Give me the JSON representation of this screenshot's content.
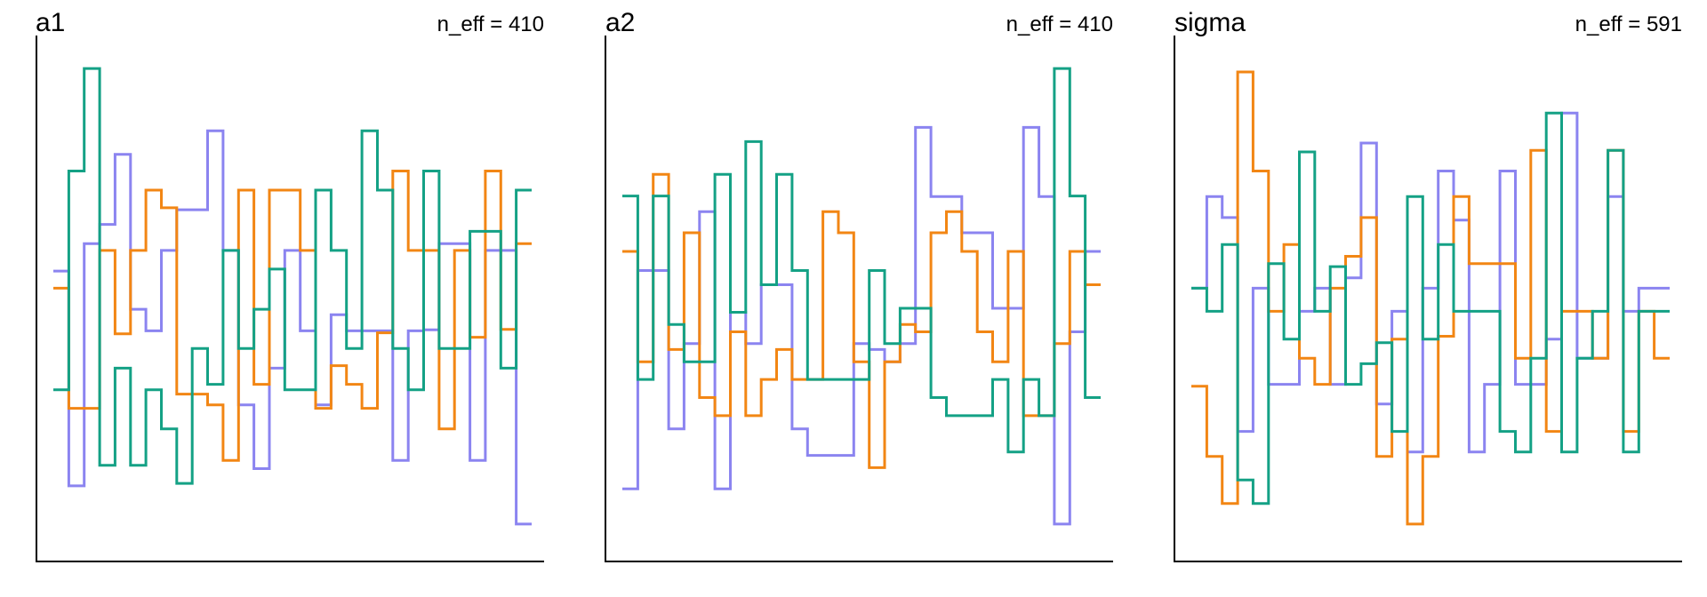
{
  "figure": "trank trace plot",
  "colors": {
    "chain1": "#8b84f0",
    "chain2": "#f28614",
    "chain3": "#14a185",
    "axis": "#000000"
  },
  "chart_data": [
    {
      "type": "line",
      "step": true,
      "title": "a1",
      "annotation": "n_eff = 410",
      "ylim": [
        0,
        1
      ],
      "n_bins": 31,
      "axes": [
        "left",
        "bottom"
      ],
      "grid": false,
      "series": [
        {
          "values": [
            0.556,
            0.118,
            0.612,
            0.651,
            0.794,
            0.478,
            0.434,
            0.598,
            0.681,
            0.681,
            0.842,
            0.598,
            0.283,
            0.153,
            0.358,
            0.598,
            0.434,
            0.283,
            0.467,
            0.434,
            0.434,
            0.434,
            0.17,
            0.434,
            0.436,
            0.612,
            0.612,
            0.17,
            0.598,
            0.598,
            0.04
          ]
        },
        {
          "values": [
            0.521,
            0.276,
            0.276,
            0.598,
            0.428,
            0.598,
            0.721,
            0.685,
            0.305,
            0.305,
            0.283,
            0.17,
            0.721,
            0.325,
            0.721,
            0.721,
            0.598,
            0.276,
            0.363,
            0.325,
            0.276,
            0.43,
            0.76,
            0.598,
            0.598,
            0.234,
            0.598,
            0.421,
            0.76,
            0.437,
            0.612
          ]
        },
        {
          "values": [
            0.314,
            0.76,
            0.969,
            0.16,
            0.358,
            0.16,
            0.314,
            0.234,
            0.123,
            0.398,
            0.325,
            0.598,
            0.398,
            0.478,
            0.56,
            0.314,
            0.314,
            0.721,
            0.598,
            0.398,
            0.842,
            0.721,
            0.398,
            0.314,
            0.76,
            0.398,
            0.398,
            0.637,
            0.637,
            0.358,
            0.721
          ]
        }
      ]
    },
    {
      "type": "line",
      "step": true,
      "title": "a2",
      "annotation": "n_eff = 410",
      "ylim": [
        0,
        1
      ],
      "n_bins": 31,
      "axes": [
        "left",
        "bottom"
      ],
      "grid": false,
      "series": [
        {
          "values": [
            0.112,
            0.557,
            0.557,
            0.234,
            0.408,
            0.677,
            0.112,
            0.472,
            0.408,
            0.528,
            0.528,
            0.234,
            0.18,
            0.18,
            0.18,
            0.408,
            0.396,
            0.371,
            0.408,
            0.849,
            0.708,
            0.708,
            0.634,
            0.634,
            0.48,
            0.48,
            0.849,
            0.708,
            0.04,
            0.432,
            0.596
          ]
        },
        {
          "values": [
            0.596,
            0.371,
            0.753,
            0.396,
            0.634,
            0.298,
            0.261,
            0.432,
            0.261,
            0.335,
            0.396,
            0.335,
            0.335,
            0.677,
            0.634,
            0.371,
            0.155,
            0.371,
            0.447,
            0.432,
            0.634,
            0.677,
            0.596,
            0.432,
            0.371,
            0.596,
            0.261,
            0.261,
            0.408,
            0.596,
            0.528
          ]
        },
        {
          "values": [
            0.709,
            0.335,
            0.709,
            0.447,
            0.371,
            0.371,
            0.753,
            0.472,
            0.82,
            0.528,
            0.753,
            0.557,
            0.335,
            0.335,
            0.335,
            0.335,
            0.557,
            0.408,
            0.48,
            0.48,
            0.298,
            0.261,
            0.261,
            0.261,
            0.335,
            0.187,
            0.335,
            0.261,
            0.969,
            0.709,
            0.298
          ]
        }
      ]
    },
    {
      "type": "line",
      "step": true,
      "title": "sigma",
      "annotation": "n_eff = 591",
      "ylim": [
        0,
        1
      ],
      "n_bins": 31,
      "axes": [
        "left",
        "bottom"
      ],
      "grid": false,
      "series": [
        {
          "values": [
            0.521,
            0.708,
            0.665,
            0.229,
            0.521,
            0.325,
            0.325,
            0.474,
            0.521,
            0.325,
            0.542,
            0.817,
            0.285,
            0.474,
            0.187,
            0.521,
            0.76,
            0.66,
            0.187,
            0.325,
            0.76,
            0.325,
            0.325,
            0.417,
            0.878,
            0.378,
            0.378,
            0.708,
            0.474,
            0.521,
            0.521
          ]
        },
        {
          "values": [
            0.321,
            0.178,
            0.082,
            0.962,
            0.76,
            0.474,
            0.61,
            0.378,
            0.325,
            0.521,
            0.586,
            0.665,
            0.178,
            0.417,
            0.04,
            0.178,
            0.423,
            0.708,
            0.571,
            0.571,
            0.571,
            0.378,
            0.802,
            0.229,
            0.474,
            0.474,
            0.378,
            0.802,
            0.229,
            0.474,
            0.378
          ]
        },
        {
          "values": [
            0.521,
            0.474,
            0.61,
            0.13,
            0.082,
            0.571,
            0.417,
            0.799,
            0.474,
            0.565,
            0.325,
            0.367,
            0.41,
            0.229,
            0.708,
            0.417,
            0.61,
            0.474,
            0.474,
            0.474,
            0.229,
            0.187,
            0.378,
            0.878,
            0.187,
            0.378,
            0.474,
            0.802,
            0.187,
            0.474,
            0.474
          ]
        }
      ]
    }
  ]
}
